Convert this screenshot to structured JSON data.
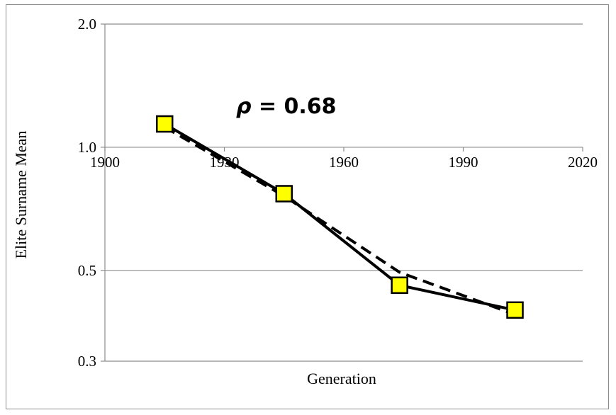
{
  "chart_data": {
    "type": "line",
    "title": "",
    "xlabel": "Generation",
    "ylabel": "Elite Surname Mean",
    "y_scale": "log",
    "xlim": [
      1900,
      2020
    ],
    "ylim": [
      0.3,
      2.0
    ],
    "x_ticks": [
      "1900",
      "1930",
      "1960",
      "1990",
      "2020"
    ],
    "y_ticks": [
      {
        "value": 2.0,
        "label": "2.0"
      },
      {
        "value": 1.0,
        "label": "1.0"
      },
      {
        "value": 0.5,
        "label": "0.5"
      },
      {
        "value": 0.3,
        "label": "0.3"
      }
    ],
    "grid": "horizontal",
    "legend": "none",
    "annotation": "ρ = 0.68",
    "series": [
      {
        "style": "solid",
        "color": "#000000",
        "marker": "square",
        "marker_color": "#FFFF00",
        "x": [
          1915,
          1945,
          1974,
          2003
        ],
        "y": [
          1.14,
          0.77,
          0.46,
          0.4
        ]
      },
      {
        "style": "dashed",
        "color": "#000000",
        "marker": "none",
        "x": [
          1915,
          1945,
          1974,
          2003
        ],
        "y": [
          1.12,
          0.76,
          0.495,
          0.39
        ]
      }
    ]
  }
}
